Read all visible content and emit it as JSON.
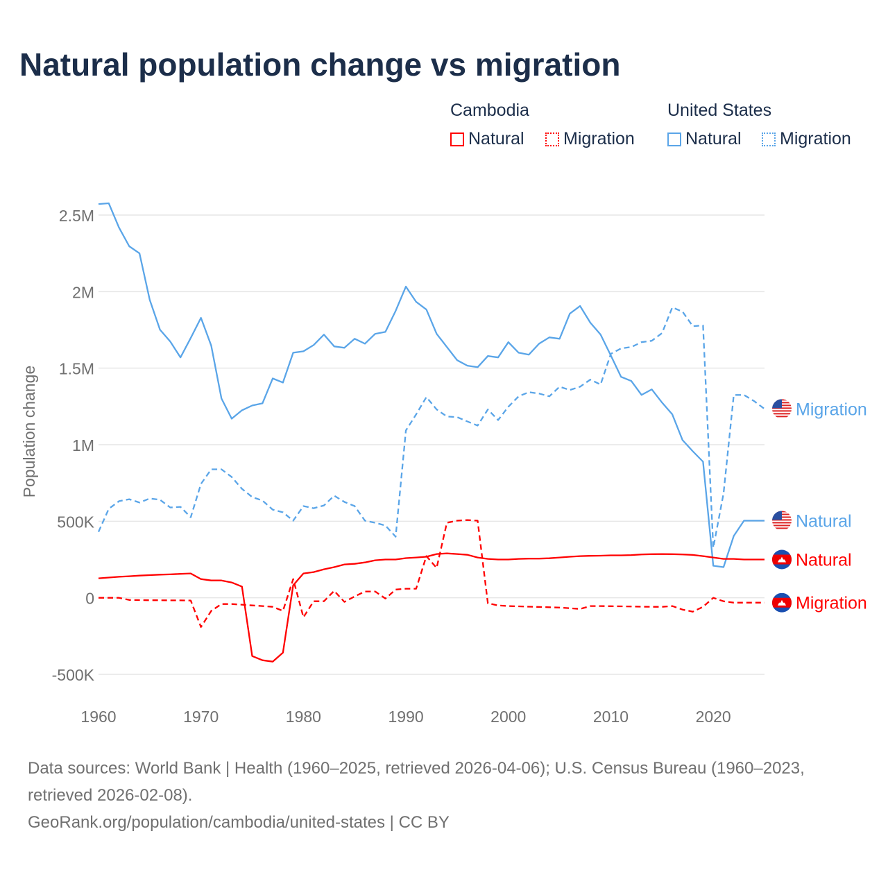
{
  "title": "Natural population change vs migration",
  "legend": {
    "groups": [
      {
        "name": "Cambodia",
        "items": [
          "Natural",
          "Migration"
        ],
        "color": "#ff0000"
      },
      {
        "name": "United States",
        "items": [
          "Natural",
          "Migration"
        ],
        "color": "#5aa5e8"
      }
    ]
  },
  "chart_data": {
    "type": "line",
    "title": "Natural population change vs migration",
    "xlabel": "",
    "ylabel": "Population change",
    "xlim": [
      1960,
      2025
    ],
    "ylim": [
      -500000,
      2500000
    ],
    "x_ticks": [
      "1960",
      "1970",
      "1980",
      "1990",
      "2000",
      "2010",
      "2020"
    ],
    "y_ticks": [
      {
        "v": -500000,
        "l": "-500K"
      },
      {
        "v": 0,
        "l": "0"
      },
      {
        "v": 500000,
        "l": "500K"
      },
      {
        "v": 1000000,
        "l": "1M"
      },
      {
        "v": 1500000,
        "l": "1.5M"
      },
      {
        "v": 2000000,
        "l": "2M"
      },
      {
        "v": 2500000,
        "l": "2.5M"
      }
    ],
    "grid": true,
    "x_start": 1960,
    "series": [
      {
        "name": "United States Natural",
        "label": "Natural",
        "country": "us",
        "color": "#5aa5e8",
        "dash": false,
        "values": [
          2572,
          2577,
          2418,
          2296,
          2250,
          1946,
          1751,
          1674,
          1570,
          1697,
          1829,
          1647,
          1302,
          1170,
          1225,
          1256,
          1270,
          1433,
          1406,
          1601,
          1610,
          1651,
          1719,
          1642,
          1633,
          1692,
          1660,
          1724,
          1737,
          1874,
          2033,
          1933,
          1883,
          1724,
          1638,
          1552,
          1516,
          1506,
          1579,
          1570,
          1670,
          1601,
          1588,
          1660,
          1701,
          1692,
          1856,
          1906,
          1797,
          1719,
          1583,
          1443,
          1416,
          1325,
          1361,
          1275,
          1198,
          1030,
          957,
          889,
          209,
          200,
          404,
          504,
          504,
          504
        ]
      },
      {
        "name": "United States Migration",
        "label": "Migration",
        "country": "us",
        "color": "#5aa5e8",
        "dash": true,
        "values": [
          431,
          581,
          631,
          644,
          622,
          649,
          640,
          590,
          594,
          526,
          744,
          839,
          839,
          789,
          712,
          658,
          635,
          576,
          558,
          504,
          599,
          585,
          603,
          667,
          626,
          599,
          504,
          490,
          472,
          399,
          1093,
          1198,
          1311,
          1230,
          1184,
          1180,
          1152,
          1125,
          1230,
          1161,
          1248,
          1316,
          1343,
          1334,
          1316,
          1379,
          1357,
          1379,
          1425,
          1393,
          1593,
          1629,
          1638,
          1670,
          1679,
          1729,
          1897,
          1869,
          1774,
          1779,
          327,
          681,
          1325,
          1325,
          1284,
          1234
        ]
      },
      {
        "name": "Cambodia Natural",
        "label": "Natural",
        "country": "kh",
        "color": "#ff0000",
        "dash": false,
        "values": [
          127,
          132,
          137,
          141,
          145,
          148,
          151,
          153,
          156,
          159,
          122,
          113,
          113,
          100,
          73,
          -381,
          -408,
          -417,
          -358,
          82,
          159,
          168,
          186,
          200,
          218,
          222,
          231,
          245,
          250,
          250,
          259,
          263,
          268,
          286,
          290,
          286,
          281,
          263,
          254,
          250,
          250,
          254,
          256,
          256,
          258,
          263,
          268,
          272,
          274,
          275,
          277,
          277,
          279,
          283,
          285,
          286,
          285,
          283,
          280,
          272,
          263,
          254,
          254,
          250,
          250,
          250
        ]
      },
      {
        "name": "Cambodia Migration",
        "label": "Migration",
        "country": "kh",
        "color": "#ff0000",
        "dash": true,
        "values": [
          0,
          0,
          0,
          -14,
          -15,
          -16,
          -16,
          -17,
          -17,
          -18,
          -191,
          -86,
          -41,
          -41,
          -45,
          -50,
          -54,
          -59,
          -86,
          122,
          -127,
          -23,
          -23,
          45,
          -27,
          9,
          41,
          41,
          -5,
          54,
          59,
          59,
          272,
          195,
          490,
          504,
          508,
          504,
          -36,
          -50,
          -54,
          -56,
          -58,
          -60,
          -62,
          -64,
          -68,
          -73,
          -54,
          -54,
          -55,
          -56,
          -57,
          -58,
          -59,
          -59,
          -54,
          -77,
          -91,
          -59,
          0,
          -23,
          -32,
          -32,
          -32,
          -32
        ]
      }
    ],
    "value_unit": "thousands"
  },
  "footer": {
    "sources": "Data sources: World Bank | Health (1960–2025, retrieved 2026-04-06); U.S. Census Bureau (1960–2023, retrieved 2026-02-08).",
    "link": "GeoRank.org/population/cambodia/united-states | CC BY"
  }
}
